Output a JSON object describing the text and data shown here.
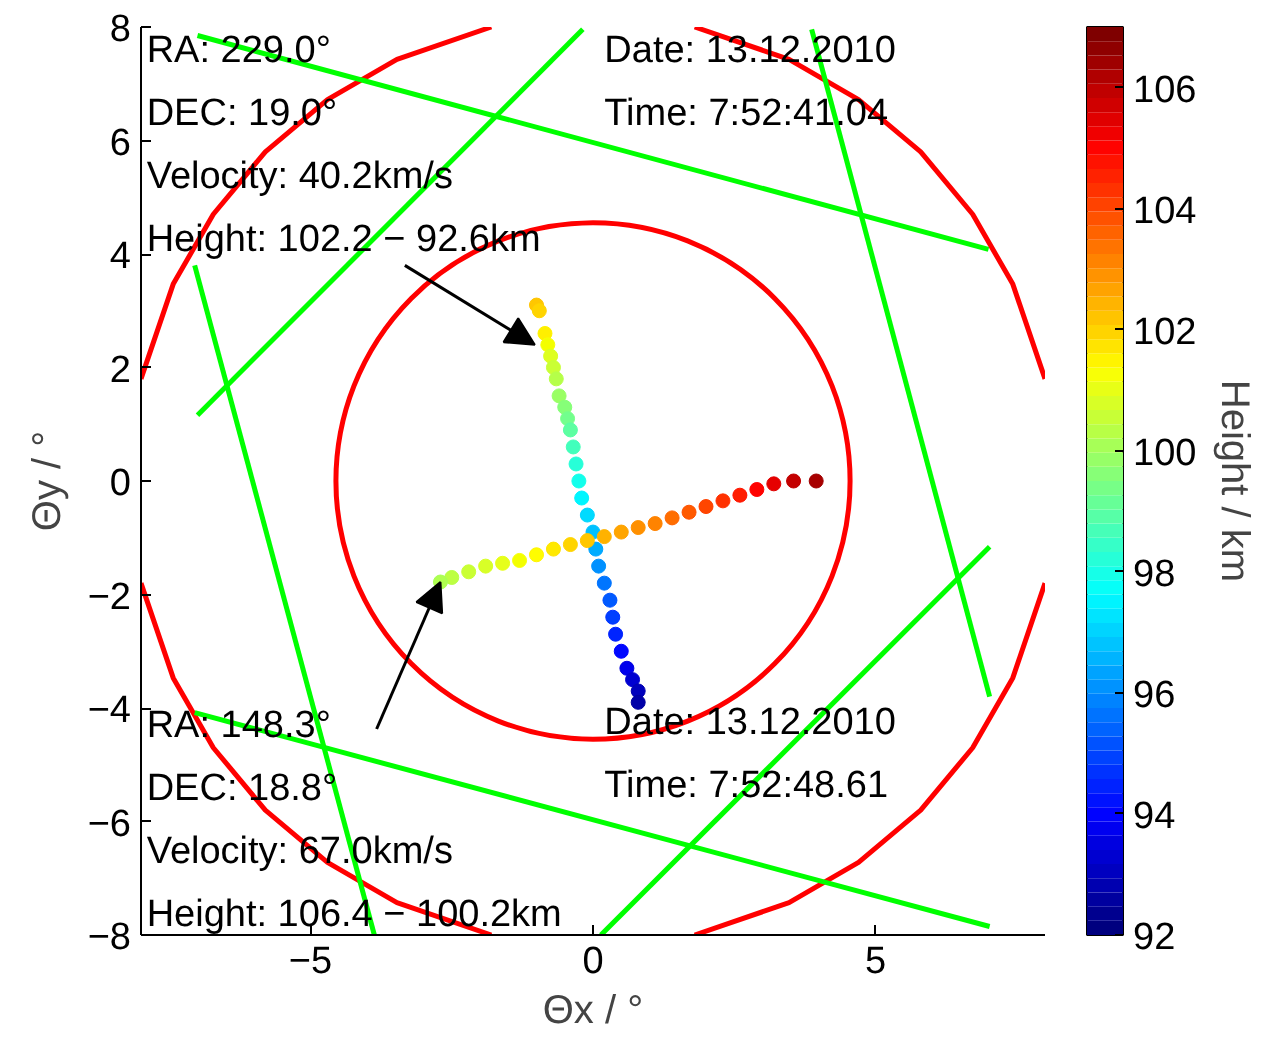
{
  "chart_data": {
    "type": "line",
    "xlabel": "Θx / °",
    "ylabel": "Θy / °",
    "clabel": "Height / km",
    "xlim": [
      -8,
      8
    ],
    "ylim": [
      -8,
      8
    ],
    "xticks": [
      -5,
      0,
      5
    ],
    "yticks": [
      -8,
      -6,
      -4,
      -2,
      0,
      2,
      4,
      6,
      8
    ],
    "clim": [
      92,
      107
    ],
    "cticks": [
      92,
      94,
      96,
      98,
      100,
      102,
      104,
      106
    ],
    "grid": false,
    "annotations": [
      {
        "text": "RA: 229.0°\nDEC: 19.0°\nVelocity: 40.2km/s\nHeight: 102.2 − 92.6km",
        "x": -1.03,
        "y": 2.4
      },
      "Date: 13.12.2010\nTime: 7:52:41.04",
      {
        "text": "RA: 148.3°\nDEC: 18.8°\nVelocity: 67.0km/s\nHeight: 106.4 − 100.2km",
        "x": -2.7,
        "y": -1.78
      },
      "Date: 13.12.2010\nTime: 7:52:48.61"
    ],
    "series": [
      {
        "color": "#ff0000",
        "x": [
          1.8,
          3.47,
          4.7,
          5.8,
          6.72,
          7.43,
          8.0
        ],
        "values": [
          8.0,
          7.43,
          6.72,
          5.8,
          4.7,
          3.47,
          1.8
        ]
      },
      {
        "color": "#ff0000",
        "x": [
          -8.0,
          -7.43,
          -6.72,
          -5.8,
          -4.7,
          -3.47,
          -1.8
        ],
        "values": [
          1.8,
          3.47,
          4.7,
          5.8,
          6.72,
          7.43,
          8.0
        ]
      },
      {
        "color": "#ff0000",
        "x": [
          -8.0,
          -7.43,
          -6.72,
          -5.8,
          -4.7,
          -3.47,
          -1.8
        ],
        "values": [
          -1.8,
          -3.47,
          -4.7,
          -5.8,
          -6.72,
          -7.43,
          -8.0
        ]
      },
      {
        "color": "#ff0000",
        "x": [
          1.8,
          3.47,
          4.7,
          5.8,
          6.72,
          7.43,
          8.0
        ],
        "values": [
          -8.0,
          -7.43,
          -6.72,
          -5.8,
          -4.7,
          -3.47,
          -1.8
        ]
      },
      {
        "color": "#00ff00",
        "x": [
          -7.0,
          7.0
        ],
        "values": [
          7.85,
          4.08
        ]
      },
      {
        "color": "#00ff00",
        "x": [
          -7.0,
          -0.18
        ],
        "values": [
          1.16,
          7.96
        ]
      },
      {
        "color": "#00ff00",
        "x": [
          -7.05,
          -3.87
        ],
        "values": [
          3.8,
          -8.0
        ]
      },
      {
        "color": "#00ff00",
        "x": [
          3.87,
          7.02
        ],
        "values": [
          7.96,
          -3.8
        ]
      },
      {
        "color": "#00ff00",
        "x": [
          -7.05,
          7.02
        ],
        "values": [
          -4.08,
          -7.85
        ]
      },
      {
        "color": "#00ff00",
        "x": [
          0.14,
          7.02
        ],
        "values": [
          -8.0,
          -1.16
        ]
      },
      {
        "type": "scatter",
        "marker": "circle",
        "x": [
          -1.0,
          -0.95,
          -0.85,
          -0.8,
          -0.75,
          -0.7,
          -0.65,
          -0.6,
          -0.5,
          -0.45,
          -0.4,
          -0.35,
          -0.3,
          -0.25,
          -0.2,
          -0.1,
          0.0,
          0.05,
          0.1,
          0.2,
          0.3,
          0.35,
          0.4,
          0.5,
          0.6,
          0.7,
          0.8,
          0.8
        ],
        "values": [
          3.1,
          3.0,
          2.6,
          2.4,
          2.2,
          2.0,
          1.8,
          1.5,
          1.3,
          1.1,
          0.9,
          0.6,
          0.3,
          0.0,
          -0.3,
          -0.6,
          -0.9,
          -1.2,
          -1.5,
          -1.8,
          -2.1,
          -2.4,
          -2.7,
          -3.0,
          -3.3,
          -3.5,
          -3.7,
          -3.9
        ],
        "colors": [
          "#ffc700",
          "#ffd400",
          "#ffef00",
          "#f3ff00",
          "#deff20",
          "#caff34",
          "#b5ff49",
          "#9aff64",
          "#86ff78",
          "#72ff8d",
          "#5dffa1",
          "#42ffbc",
          "#27ffd8",
          "#12ffec",
          "#00f6ff",
          "#00dbff",
          "#00c0ff",
          "#00acff",
          "#0090ff",
          "#0075ff",
          "#005aff",
          "#003fff",
          "#0024ff",
          "#0008ff",
          "#0000ec",
          "#0000d1",
          "#0000bd",
          "#0000a8"
        ],
        "cvalues": [
          102.2,
          102.0,
          101.6,
          101.2,
          100.9,
          100.6,
          100.3,
          99.9,
          99.6,
          99.3,
          99.0,
          98.6,
          98.2,
          97.9,
          97.5,
          97.1,
          96.7,
          96.4,
          96.0,
          95.6,
          95.2,
          94.8,
          94.4,
          94.0,
          93.6,
          93.2,
          92.9,
          92.6
        ]
      },
      {
        "type": "scatter",
        "marker": "circle",
        "x": [
          3.95,
          3.55,
          3.2,
          2.9,
          2.6,
          2.3,
          2.0,
          1.7,
          1.4,
          1.1,
          0.8,
          0.5,
          0.2,
          -0.1,
          -0.4,
          -0.7,
          -1.0,
          -1.3,
          -1.6,
          -1.9,
          -2.2,
          -2.5,
          -2.7
        ],
        "values": [
          0.0,
          0.0,
          -0.05,
          -0.15,
          -0.25,
          -0.35,
          -0.45,
          -0.55,
          -0.65,
          -0.75,
          -0.82,
          -0.9,
          -0.98,
          -1.05,
          -1.12,
          -1.2,
          -1.3,
          -1.4,
          -1.45,
          -1.5,
          -1.6,
          -1.7,
          -1.78
        ],
        "colors": [
          "#a80000",
          "#c40000",
          "#e60000",
          "#ff0200",
          "#ff1d00",
          "#ff3100",
          "#ff4600",
          "#ff5a00",
          "#ff6e00",
          "#ff8300",
          "#ff9000",
          "#ffa500",
          "#ffb200",
          "#ffc700",
          "#ffd400",
          "#ffe900",
          "#fffd00",
          "#f3ff00",
          "#e6ff1a",
          "#d8ff27",
          "#caff34",
          "#bdff42",
          "#afff50"
        ],
        "cvalues": [
          106.4,
          106.0,
          105.5,
          105.1,
          104.7,
          104.4,
          104.1,
          103.8,
          103.5,
          103.2,
          103.0,
          102.7,
          102.5,
          102.2,
          102.0,
          101.7,
          101.4,
          101.2,
          101.0,
          100.8,
          100.6,
          100.4,
          100.2
        ]
      }
    ]
  }
}
